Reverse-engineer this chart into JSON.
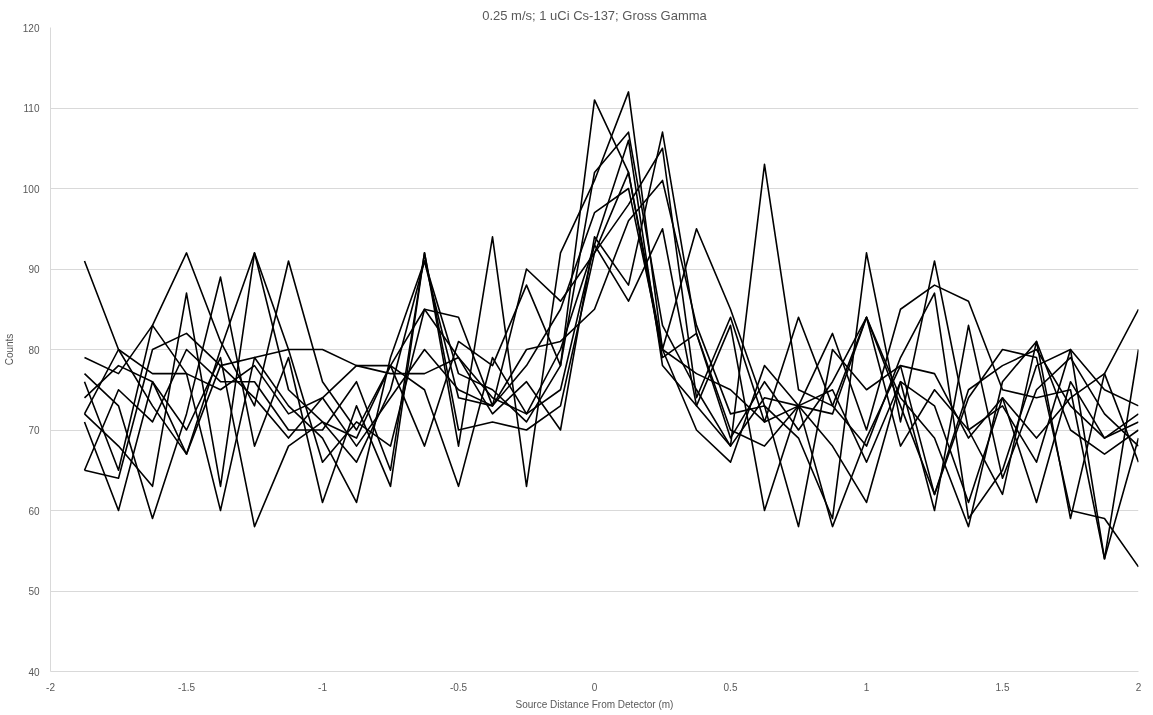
{
  "chart_data": {
    "type": "line",
    "title": "0.25 m/s; 1 uCi Cs-137; Gross Gamma",
    "xlabel": "Source Distance From Detector (m)",
    "ylabel": "Counts",
    "x": [
      -1.875,
      -1.75,
      -1.625,
      -1.5,
      -1.375,
      -1.25,
      -1.125,
      -1,
      -0.875,
      -0.75,
      -0.625,
      -0.5,
      -0.375,
      -0.25,
      -0.125,
      0,
      0.125,
      0.25,
      0.375,
      0.5,
      0.625,
      0.75,
      0.875,
      1,
      1.125,
      1.25,
      1.375,
      1.5,
      1.625,
      1.75,
      1.875,
      2
    ],
    "series": [
      {
        "color": "#000000",
        "values": [
          91,
          80,
          73,
          67,
          80,
          92,
          75,
          71,
          66,
          75,
          91,
          77,
          75,
          71,
          78,
          111,
          102,
          79,
          82,
          70,
          68,
          73,
          82,
          70,
          85,
          88,
          86,
          75,
          74,
          75,
          54,
          80
        ]
      },
      {
        "color": "#000000",
        "values": [
          79,
          77,
          83,
          92,
          81,
          73,
          91,
          76,
          70,
          78,
          68,
          81,
          78,
          88,
          78,
          102,
          107,
          83,
          75,
          68,
          103,
          75,
          73,
          84,
          73,
          62,
          74,
          80,
          79,
          60,
          59,
          53
        ]
      },
      {
        "color": "#000000",
        "values": [
          77,
          73,
          59,
          72,
          89,
          68,
          79,
          61,
          73,
          63,
          92,
          68,
          94,
          63,
          92,
          101,
          112,
          80,
          95,
          85,
          73,
          69,
          59,
          92,
          71,
          91,
          70,
          62,
          81,
          59,
          77,
          85
        ]
      },
      {
        "color": "#000000",
        "values": [
          76,
          65,
          83,
          77,
          60,
          79,
          80,
          80,
          78,
          78,
          85,
          84,
          73,
          90,
          86,
          92,
          98,
          105,
          74,
          84,
          71,
          84,
          73,
          68,
          79,
          87,
          59,
          65,
          78,
          80,
          54,
          69
        ]
      },
      {
        "color": "#000000",
        "values": [
          74,
          78,
          76,
          70,
          79,
          58,
          68,
          71,
          69,
          78,
          75,
          63,
          79,
          72,
          80,
          93,
          106,
          78,
          73,
          83,
          60,
          73,
          58,
          69,
          78,
          62,
          75,
          78,
          80,
          73,
          69,
          72
        ]
      },
      {
        "color": "#000000",
        "values": [
          72,
          68,
          63,
          87,
          63,
          92,
          80,
          66,
          71,
          68,
          85,
          79,
          72,
          76,
          70,
          94,
          88,
          107,
          82,
          69,
          76,
          70,
          76,
          84,
          68,
          75,
          70,
          73,
          66,
          80,
          75,
          73
        ]
      },
      {
        "color": "#000000",
        "values": [
          71,
          60,
          76,
          67,
          78,
          79,
          73,
          69,
          61,
          79,
          91,
          74,
          73,
          78,
          85,
          97,
          100,
          80,
          77,
          75,
          71,
          73,
          72,
          84,
          74,
          69,
          58,
          76,
          81,
          70,
          67,
          70
        ]
      },
      {
        "color": "#000000",
        "values": [
          65,
          64,
          80,
          82,
          78,
          74,
          69,
          74,
          78,
          77,
          77,
          79,
          74,
          72,
          75,
          93,
          86,
          95,
          73,
          68,
          74,
          73,
          68,
          61,
          76,
          73,
          61,
          74,
          69,
          74,
          77,
          66
        ]
      },
      {
        "color": "#000000",
        "values": [
          65,
          75,
          71,
          80,
          76,
          76,
          70,
          70,
          76,
          65,
          92,
          70,
          71,
          70,
          73,
          92,
          102,
          80,
          70,
          66,
          78,
          73,
          75,
          66,
          76,
          60,
          83,
          64,
          75,
          79,
          72,
          68
        ]
      },
      {
        "color": "#000000",
        "values": [
          72,
          80,
          77,
          77,
          75,
          78,
          72,
          74,
          68,
          74,
          80,
          75,
          73,
          80,
          81,
          85,
          96,
          101,
          83,
          72,
          73,
          58,
          80,
          75,
          78,
          77,
          69,
          74,
          61,
          76,
          69,
          71
        ]
      }
    ],
    "xlim": [
      -2,
      2
    ],
    "ylim": [
      40,
      120
    ],
    "xticks": [
      -2,
      -1.5,
      -1,
      -0.5,
      0,
      0.5,
      1,
      1.5,
      2
    ],
    "yticks": [
      40,
      50,
      60,
      70,
      80,
      90,
      100,
      110,
      120
    ],
    "grid": "y",
    "marker": "none",
    "line_style": "solid"
  }
}
